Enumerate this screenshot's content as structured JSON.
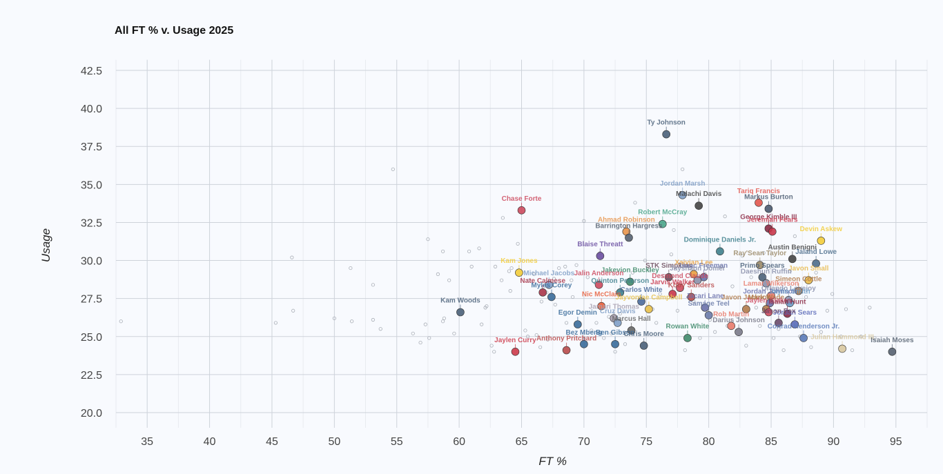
{
  "chart_data": {
    "type": "scatter",
    "title": "All FT % v. Usage 2025",
    "xlabel": "FT %",
    "ylabel": "Usage",
    "xlim": [
      32.5,
      97.5
    ],
    "ylim": [
      19,
      43.5
    ],
    "x_ticks": [
      "35",
      "40",
      "45",
      "50",
      "55",
      "60",
      "65",
      "70",
      "75",
      "80",
      "85",
      "90",
      "95"
    ],
    "y_ticks": [
      "20.0",
      "22.5",
      "25.0",
      "27.5",
      "30.0",
      "32.5",
      "35.0",
      "37.5",
      "40.0",
      "42.5"
    ],
    "grid": true,
    "labeled_points": [
      {
        "name": "Ty Johnson",
        "x": 76.6,
        "y": 38.3,
        "color": "#4a6079"
      },
      {
        "name": "Jordan Marsh",
        "x": 77.9,
        "y": 34.3,
        "color": "#7f9ec6"
      },
      {
        "name": "Malachi Davis",
        "x": 79.2,
        "y": 33.6,
        "color": "#444444"
      },
      {
        "name": "Tariq Francis",
        "x": 84.0,
        "y": 33.8,
        "color": "#e2564e"
      },
      {
        "name": "Markus Burton",
        "x": 84.8,
        "y": 33.4,
        "color": "#4a5a70"
      },
      {
        "name": "Chase Forte",
        "x": 65.0,
        "y": 33.3,
        "color": "#cc4a5e"
      },
      {
        "name": "Robert McCray",
        "x": 76.3,
        "y": 32.4,
        "color": "#4aa58a"
      },
      {
        "name": "George Kimble III",
        "x": 84.8,
        "y": 32.1,
        "color": "#8a2a45"
      },
      {
        "name": "Jeremiah Fears",
        "x": 85.1,
        "y": 31.9,
        "color": "#c8364a"
      },
      {
        "name": "Ahmad Robinson",
        "x": 73.4,
        "y": 31.9,
        "color": "#e8944a"
      },
      {
        "name": "Barrington Hargress",
        "x": 73.6,
        "y": 31.5,
        "color": "#556070"
      },
      {
        "name": "Devin Askew",
        "x": 89.0,
        "y": 31.3,
        "color": "#f2cc3a"
      },
      {
        "name": "Dominique Daniels Jr.",
        "x": 80.9,
        "y": 30.6,
        "color": "#3e7f8c"
      },
      {
        "name": "Blaise Threatt",
        "x": 71.3,
        "y": 30.3,
        "color": "#6a4ea0"
      },
      {
        "name": "Austin Benigni",
        "x": 86.7,
        "y": 30.1,
        "color": "#444444"
      },
      {
        "name": "Jaland Lowe",
        "x": 88.6,
        "y": 29.8,
        "color": "#4a6b8a"
      },
      {
        "name": "Ray'Sean Taylor",
        "x": 84.1,
        "y": 29.7,
        "color": "#9a8866"
      },
      {
        "name": "Kam Jones",
        "x": 64.8,
        "y": 29.2,
        "color": "#f2cc3a"
      },
      {
        "name": "Primo Spears",
        "x": 84.3,
        "y": 28.9,
        "color": "#4a6079"
      },
      {
        "name": "Javon Small",
        "x": 88.0,
        "y": 28.7,
        "color": "#e8b84a"
      },
      {
        "name": "Daeshun Ruffin",
        "x": 84.6,
        "y": 28.5,
        "color": "#8a8faa"
      },
      {
        "name": "STK Simpkins",
        "x": 76.8,
        "y": 28.9,
        "color": "#6a4a5a"
      },
      {
        "name": "Xaivian Lee",
        "x": 78.8,
        "y": 29.1,
        "color": "#e8a040"
      },
      {
        "name": "Isaac Freeman",
        "x": 79.6,
        "y": 28.9,
        "color": "#6670a8"
      },
      {
        "name": "Jayshaun Domer",
        "x": 79.1,
        "y": 28.7,
        "color": "#8a8faa"
      },
      {
        "name": "Jakevion Buckley",
        "x": 73.7,
        "y": 28.6,
        "color": "#3f8a6a"
      },
      {
        "name": "Jalin Anderson",
        "x": 71.2,
        "y": 28.4,
        "color": "#cc4a5e"
      },
      {
        "name": "Michael Jacobs",
        "x": 67.2,
        "y": 28.4,
        "color": "#7f9ec6"
      },
      {
        "name": "Nate Calmese",
        "x": 66.7,
        "y": 27.9,
        "color": "#a8354a"
      },
      {
        "name": "Myles Corey",
        "x": 67.4,
        "y": 27.6,
        "color": "#3a6b9a"
      },
      {
        "name": "Simeon Cottle",
        "x": 87.2,
        "y": 28.0,
        "color": "#b07a4a"
      },
      {
        "name": "Lamar Wilkerson",
        "x": 85.0,
        "y": 27.7,
        "color": "#e87a6a"
      },
      {
        "name": "Desmond Claude",
        "x": 77.7,
        "y": 28.2,
        "color": "#cc4a5e"
      },
      {
        "name": "Jarvis Walker",
        "x": 77.1,
        "y": 27.8,
        "color": "#c8364a"
      },
      {
        "name": "Orlando Lovejoy",
        "x": 86.4,
        "y": 27.4,
        "color": "#8a8faa"
      },
      {
        "name": "Jordan Johnson",
        "x": 84.9,
        "y": 27.2,
        "color": "#6a70aa"
      },
      {
        "name": "Quinton Peterson",
        "x": 72.9,
        "y": 27.9,
        "color": "#3e7f8c"
      },
      {
        "name": "Koby Sanders",
        "x": 78.6,
        "y": 27.6,
        "color": "#b84a4a"
      },
      {
        "name": "Nic McClain",
        "x": 71.4,
        "y": 27.0,
        "color": "#e85e3a"
      },
      {
        "name": "Carlos White",
        "x": 74.6,
        "y": 27.3,
        "color": "#4a6a9a"
      },
      {
        "name": "Mark Wade",
        "x": 84.6,
        "y": 26.8,
        "color": "#b07a4a"
      },
      {
        "name": "Jaylin Smith",
        "x": 86.5,
        "y": 27.2,
        "color": "#6a9ac6"
      },
      {
        "name": "Jacari Lane",
        "x": 79.7,
        "y": 26.9,
        "color": "#6a70aa"
      },
      {
        "name": "Javon Jackson",
        "x": 83.0,
        "y": 26.8,
        "color": "#b07a4a"
      },
      {
        "name": "Jaylen Blakes",
        "x": 84.8,
        "y": 26.6,
        "color": "#cc4a5e"
      },
      {
        "name": "Kam Woods",
        "x": 60.1,
        "y": 26.6,
        "color": "#4a6079"
      },
      {
        "name": "Jayvontae Campbell",
        "x": 75.2,
        "y": 26.8,
        "color": "#e8c04a"
      },
      {
        "name": "Isaiah Hunt",
        "x": 86.3,
        "y": 26.5,
        "color": "#8a2a45"
      },
      {
        "name": "Egor Demin",
        "x": 69.5,
        "y": 25.8,
        "color": "#3a6b9a"
      },
      {
        "name": "Jamari Thomas",
        "x": 72.4,
        "y": 26.2,
        "color": "#a8a0b0"
      },
      {
        "name": "Samage Teel",
        "x": 80.0,
        "y": 26.4,
        "color": "#6a7aa8"
      },
      {
        "name": "Jordan Sears",
        "x": 86.9,
        "y": 25.8,
        "color": "#5a6ab8"
      },
      {
        "name": "Jason Fox",
        "x": 85.6,
        "y": 25.9,
        "color": "#6a4a6a"
      },
      {
        "name": "Cruz Davis",
        "x": 72.7,
        "y": 25.9,
        "color": "#7f9ec6"
      },
      {
        "name": "Rob Martin",
        "x": 81.8,
        "y": 25.7,
        "color": "#e87a6a"
      },
      {
        "name": "Darius Johnson",
        "x": 82.4,
        "y": 25.3,
        "color": "#7a7a8a"
      },
      {
        "name": "Marcus Hall",
        "x": 73.8,
        "y": 25.4,
        "color": "#666666"
      },
      {
        "name": "Bez Mbeng",
        "x": 70.0,
        "y": 24.5,
        "color": "#3a6b9a"
      },
      {
        "name": "Jaylen Curry",
        "x": 64.5,
        "y": 24.0,
        "color": "#cc3a4a"
      },
      {
        "name": "Anthony Pritchard",
        "x": 68.6,
        "y": 24.1,
        "color": "#b84a4a"
      },
      {
        "name": "Ben Gibson",
        "x": 72.5,
        "y": 24.5,
        "color": "#3a6b9a"
      },
      {
        "name": "Chris Moore",
        "x": 74.8,
        "y": 24.4,
        "color": "#4a6079"
      },
      {
        "name": "Rowan White",
        "x": 78.3,
        "y": 24.9,
        "color": "#3f8a6a"
      },
      {
        "name": "Conrad Henderson Jr.",
        "x": 87.6,
        "y": 24.9,
        "color": "#5a7ab8"
      },
      {
        "name": "Julian Hammond III",
        "x": 90.7,
        "y": 24.2,
        "color": "#d8c8a0"
      },
      {
        "name": "Isaiah Moses",
        "x": 94.7,
        "y": 24.0,
        "color": "#556070"
      }
    ],
    "background_points": [
      [
        32.9,
        26.0
      ],
      [
        45.3,
        25.9
      ],
      [
        46.6,
        30.2
      ],
      [
        46.7,
        26.7
      ],
      [
        50.0,
        26.2
      ],
      [
        51.3,
        29.5
      ],
      [
        51.4,
        26.0
      ],
      [
        53.1,
        28.4
      ],
      [
        53.1,
        26.1
      ],
      [
        53.7,
        25.5
      ],
      [
        54.7,
        36.0
      ],
      [
        56.3,
        25.2
      ],
      [
        56.9,
        24.6
      ],
      [
        57.3,
        25.8
      ],
      [
        57.5,
        31.4
      ],
      [
        57.6,
        24.9
      ],
      [
        58.3,
        29.1
      ],
      [
        58.7,
        30.6
      ],
      [
        58.7,
        26.0
      ],
      [
        58.8,
        26.2
      ],
      [
        59.2,
        28.7
      ],
      [
        59.6,
        25.2
      ],
      [
        60.8,
        30.6
      ],
      [
        61.0,
        29.6
      ],
      [
        61.6,
        30.8
      ],
      [
        61.8,
        25.8
      ],
      [
        62.1,
        26.9
      ],
      [
        62.2,
        27.0
      ],
      [
        62.6,
        24.4
      ],
      [
        62.8,
        24.0
      ],
      [
        62.9,
        29.6
      ],
      [
        63.4,
        28.7
      ],
      [
        63.5,
        32.8
      ],
      [
        64.0,
        29.3
      ],
      [
        64.1,
        28.0
      ],
      [
        64.2,
        29.5
      ],
      [
        64.7,
        31.1
      ],
      [
        65.3,
        25.4
      ],
      [
        65.5,
        25.0
      ],
      [
        65.6,
        28.7
      ],
      [
        66.0,
        29.1
      ],
      [
        66.2,
        25.1
      ],
      [
        66.5,
        24.3
      ],
      [
        66.6,
        27.3
      ],
      [
        67.0,
        27.9
      ],
      [
        67.1,
        24.8
      ],
      [
        67.6,
        28.8
      ],
      [
        67.7,
        27.1
      ],
      [
        68.0,
        29.5
      ],
      [
        68.5,
        29.6
      ],
      [
        68.6,
        25.9
      ],
      [
        69.0,
        28.7
      ],
      [
        69.1,
        27.6
      ],
      [
        69.4,
        29.7
      ],
      [
        70.0,
        32.6
      ],
      [
        70.3,
        28.9
      ],
      [
        70.6,
        25.4
      ],
      [
        71.0,
        25.9
      ],
      [
        71.3,
        30.5
      ],
      [
        71.6,
        24.9
      ],
      [
        72.0,
        26.3
      ],
      [
        72.2,
        25.2
      ],
      [
        72.5,
        24.0
      ],
      [
        72.9,
        26.5
      ],
      [
        73.3,
        24.5
      ],
      [
        73.9,
        29.2
      ],
      [
        74.1,
        33.8
      ],
      [
        74.5,
        27.5
      ],
      [
        74.9,
        30.0
      ],
      [
        75.2,
        29.4
      ],
      [
        75.5,
        26.8
      ],
      [
        75.8,
        25.9
      ],
      [
        76.1,
        27.8
      ],
      [
        76.4,
        29.0
      ],
      [
        77.0,
        30.4
      ],
      [
        77.2,
        32.0
      ],
      [
        77.5,
        26.7
      ],
      [
        77.9,
        36.0
      ],
      [
        78.1,
        24.1
      ],
      [
        78.5,
        29.5
      ],
      [
        78.8,
        27.3
      ],
      [
        79.3,
        24.9
      ],
      [
        79.7,
        29.1
      ],
      [
        80.1,
        26.1
      ],
      [
        80.5,
        25.3
      ],
      [
        81.0,
        29.6
      ],
      [
        81.3,
        32.9
      ],
      [
        81.5,
        25.7
      ],
      [
        81.9,
        28.3
      ],
      [
        82.3,
        26.3
      ],
      [
        82.7,
        30.3
      ],
      [
        83.0,
        24.4
      ],
      [
        83.4,
        28.9
      ],
      [
        83.8,
        26.9
      ],
      [
        84.1,
        25.7
      ],
      [
        84.4,
        30.5
      ],
      [
        84.8,
        29.5
      ],
      [
        85.2,
        24.9
      ],
      [
        85.6,
        25.5
      ],
      [
        86.0,
        24.1
      ],
      [
        86.5,
        29.3
      ],
      [
        86.9,
        31.6
      ],
      [
        87.3,
        25.0
      ],
      [
        87.8,
        27.6
      ],
      [
        88.2,
        24.3
      ],
      [
        88.6,
        29.2
      ],
      [
        89.0,
        25.3
      ],
      [
        89.5,
        26.7
      ],
      [
        89.9,
        27.8
      ],
      [
        90.6,
        25.0
      ],
      [
        91.0,
        26.8
      ],
      [
        91.5,
        24.1
      ],
      [
        92.2,
        25.0
      ],
      [
        92.9,
        26.9
      ],
      [
        93.3,
        24.9
      ]
    ]
  }
}
